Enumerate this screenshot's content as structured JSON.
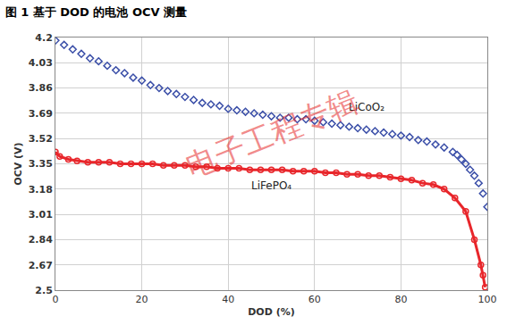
{
  "chart_data": {
    "type": "line",
    "title": "图 1 基于 DOD 的电池 OCV 测量",
    "x_label": "DOD (%)",
    "y_label": "OCV (V)",
    "xlim": [
      0,
      100
    ],
    "xticks": [
      0,
      20,
      40,
      60,
      80,
      100
    ],
    "ylim": [
      2.5,
      4.2
    ],
    "yticks": [
      2.5,
      2.67,
      2.84,
      3.01,
      3.18,
      3.35,
      3.52,
      3.69,
      3.86,
      4.03,
      4.2
    ],
    "grid": true,
    "series": [
      {
        "name": "LiCoO₂",
        "color": "#3b4fa8",
        "marker": "diamond-open",
        "line_style": "none",
        "x": [
          0,
          2,
          4,
          6,
          8,
          10,
          12,
          14,
          16,
          18,
          20,
          22,
          24,
          26,
          28,
          30,
          32,
          34,
          36,
          38,
          40,
          42,
          44,
          46,
          48,
          50,
          52,
          54,
          56,
          58,
          60,
          62,
          64,
          66,
          68,
          70,
          72,
          74,
          76,
          78,
          80,
          82,
          84,
          86,
          88,
          90,
          92,
          93,
          94,
          95,
          96,
          97,
          98,
          99,
          100
        ],
        "values": [
          4.18,
          4.15,
          4.12,
          4.09,
          4.06,
          4.04,
          4.01,
          3.98,
          3.96,
          3.93,
          3.91,
          3.88,
          3.86,
          3.84,
          3.82,
          3.8,
          3.78,
          3.76,
          3.75,
          3.74,
          3.72,
          3.71,
          3.7,
          3.69,
          3.68,
          3.67,
          3.66,
          3.66,
          3.65,
          3.65,
          3.64,
          3.63,
          3.62,
          3.61,
          3.6,
          3.59,
          3.58,
          3.57,
          3.56,
          3.55,
          3.54,
          3.53,
          3.51,
          3.5,
          3.48,
          3.46,
          3.43,
          3.41,
          3.38,
          3.35,
          3.31,
          3.27,
          3.22,
          3.15,
          3.06
        ]
      },
      {
        "name": "LiFePO₄",
        "color": "#e8262b",
        "marker": "circle-open",
        "line_style": "solid",
        "x": [
          0,
          1,
          3,
          5,
          7.5,
          10,
          12.5,
          15,
          17.5,
          20,
          22.5,
          25,
          27.5,
          30,
          32.5,
          35,
          37.5,
          40,
          42.5,
          45,
          47.5,
          50,
          52.5,
          55,
          57.5,
          60,
          62.5,
          65,
          67.5,
          70,
          72.5,
          75,
          77.5,
          80,
          82.5,
          85,
          87.5,
          90,
          92.5,
          95,
          97,
          98.5,
          99,
          99.5
        ],
        "values": [
          3.43,
          3.4,
          3.38,
          3.37,
          3.36,
          3.36,
          3.36,
          3.35,
          3.35,
          3.35,
          3.35,
          3.34,
          3.34,
          3.34,
          3.33,
          3.33,
          3.32,
          3.32,
          3.32,
          3.31,
          3.31,
          3.31,
          3.31,
          3.3,
          3.3,
          3.3,
          3.29,
          3.29,
          3.28,
          3.28,
          3.27,
          3.27,
          3.26,
          3.25,
          3.24,
          3.22,
          3.21,
          3.18,
          3.12,
          3.03,
          2.84,
          2.67,
          2.6,
          2.52
        ]
      }
    ],
    "annotations": [
      {
        "text": "电子工程专辑"
      }
    ]
  }
}
